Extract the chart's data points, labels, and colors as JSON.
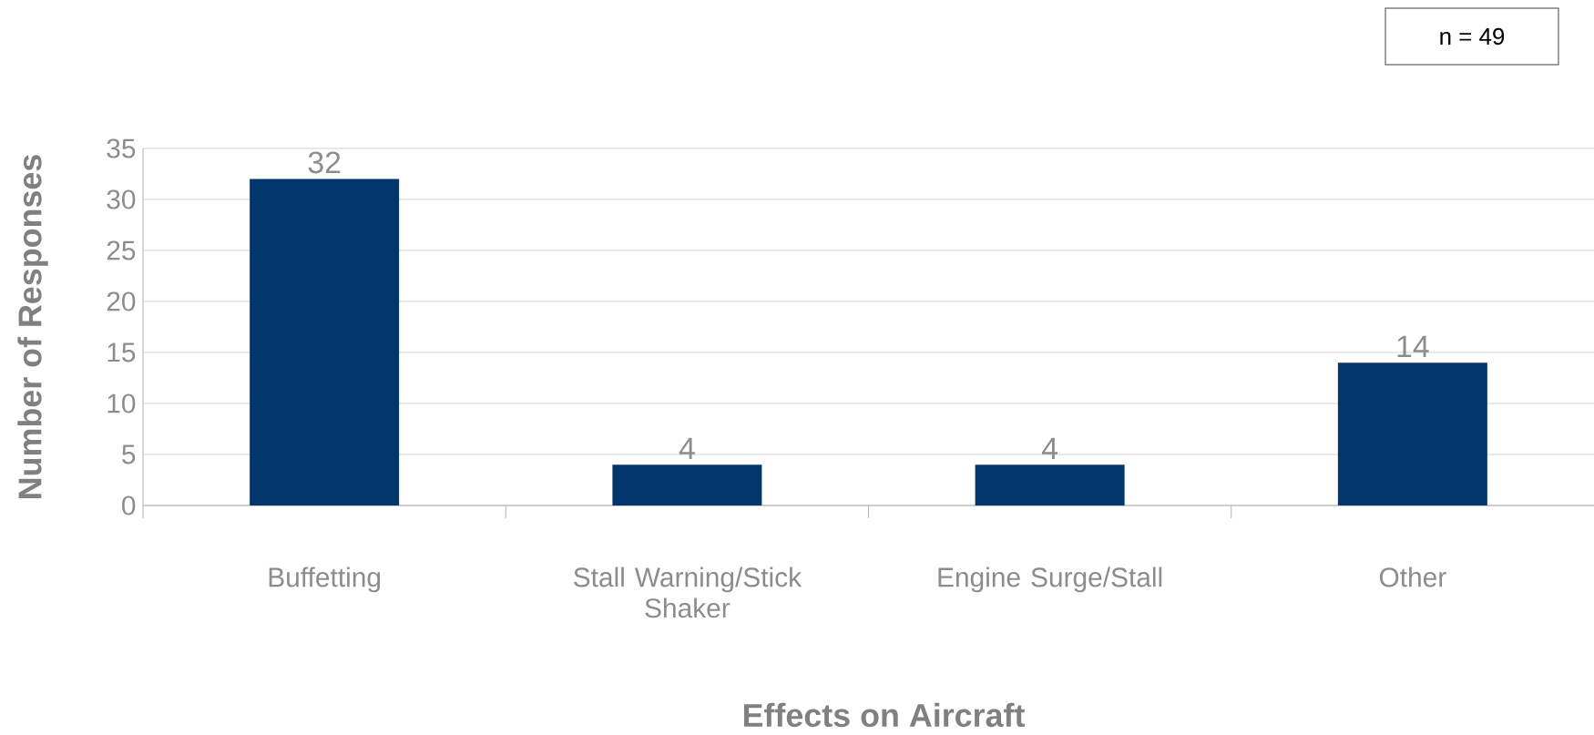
{
  "chart_data": {
    "type": "bar",
    "xlabel": "Effects on Aircraft",
    "ylabel": "Number of Responses",
    "categories": [
      "Buffetting",
      "Stall Warning/Stick Shaker",
      "Engine Surge/Stall",
      "Other"
    ],
    "values": [
      32,
      4,
      4,
      14
    ],
    "color": "#03366c",
    "ylim": [
      0,
      35
    ],
    "yticks": [
      0,
      5,
      10,
      15,
      20,
      25,
      30,
      35
    ],
    "grid": "y",
    "data_labels": true,
    "annotations": [
      "n = 49"
    ]
  }
}
